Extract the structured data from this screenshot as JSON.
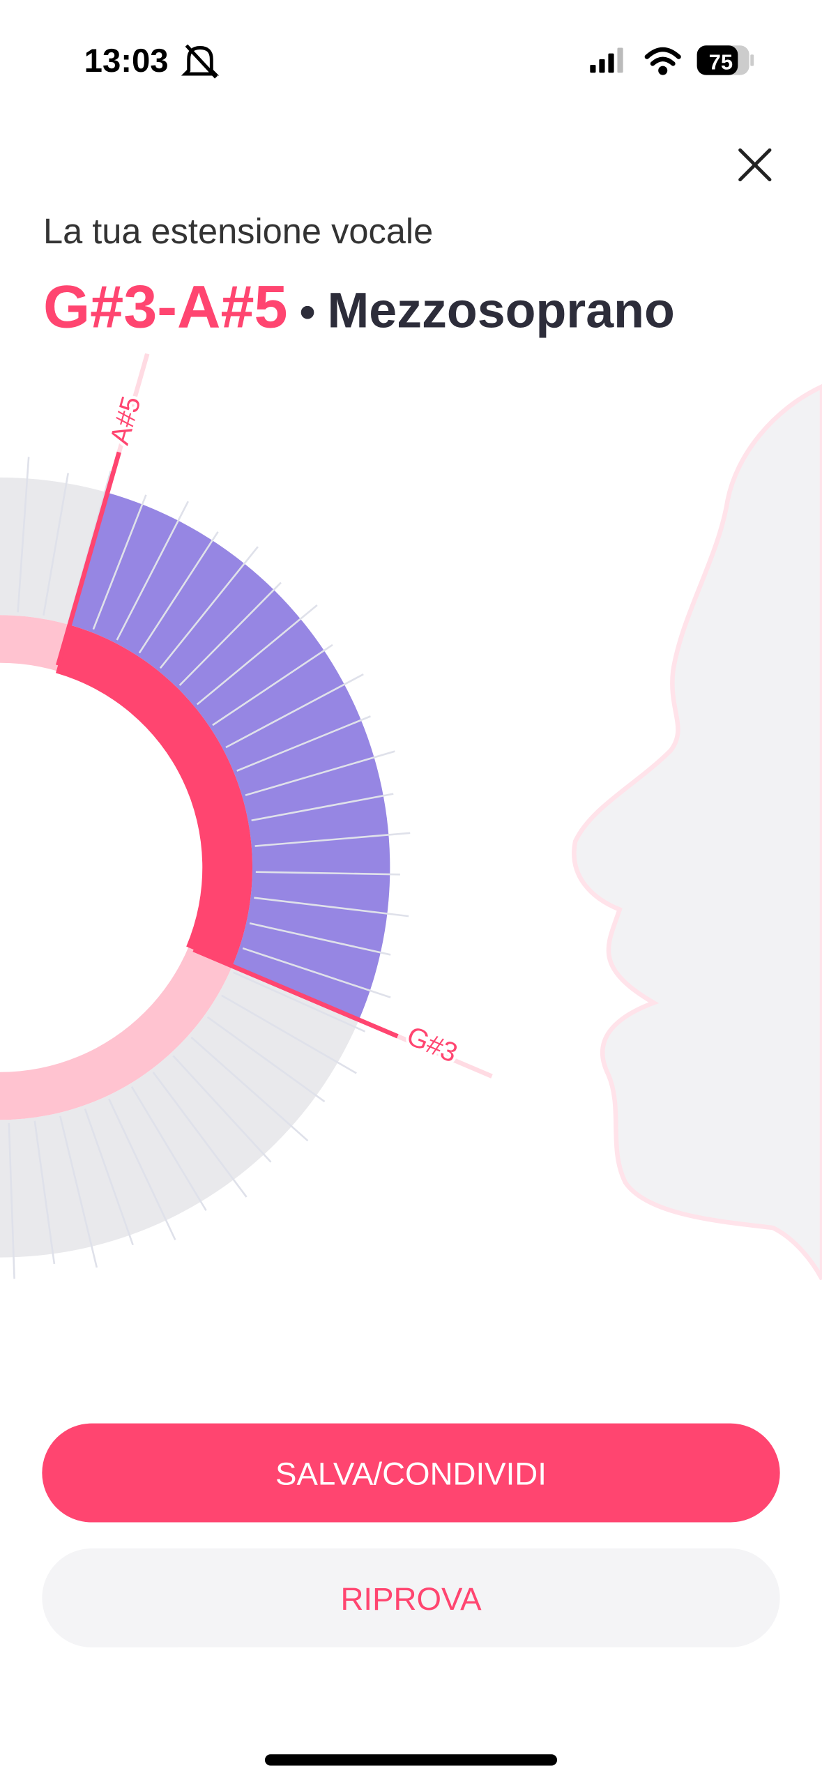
{
  "status_bar": {
    "time": "13:03",
    "battery": "75"
  },
  "header": {
    "subtitle": "La tua estensione vocale",
    "range": "G#3-A#5",
    "separator": "•",
    "voice_type": "Mezzosoprano"
  },
  "chart": {
    "high_label": "A#5",
    "low_label": "G#3"
  },
  "buttons": {
    "primary": "SALVA/CONDIVIDI",
    "secondary": "RIPROVA"
  }
}
